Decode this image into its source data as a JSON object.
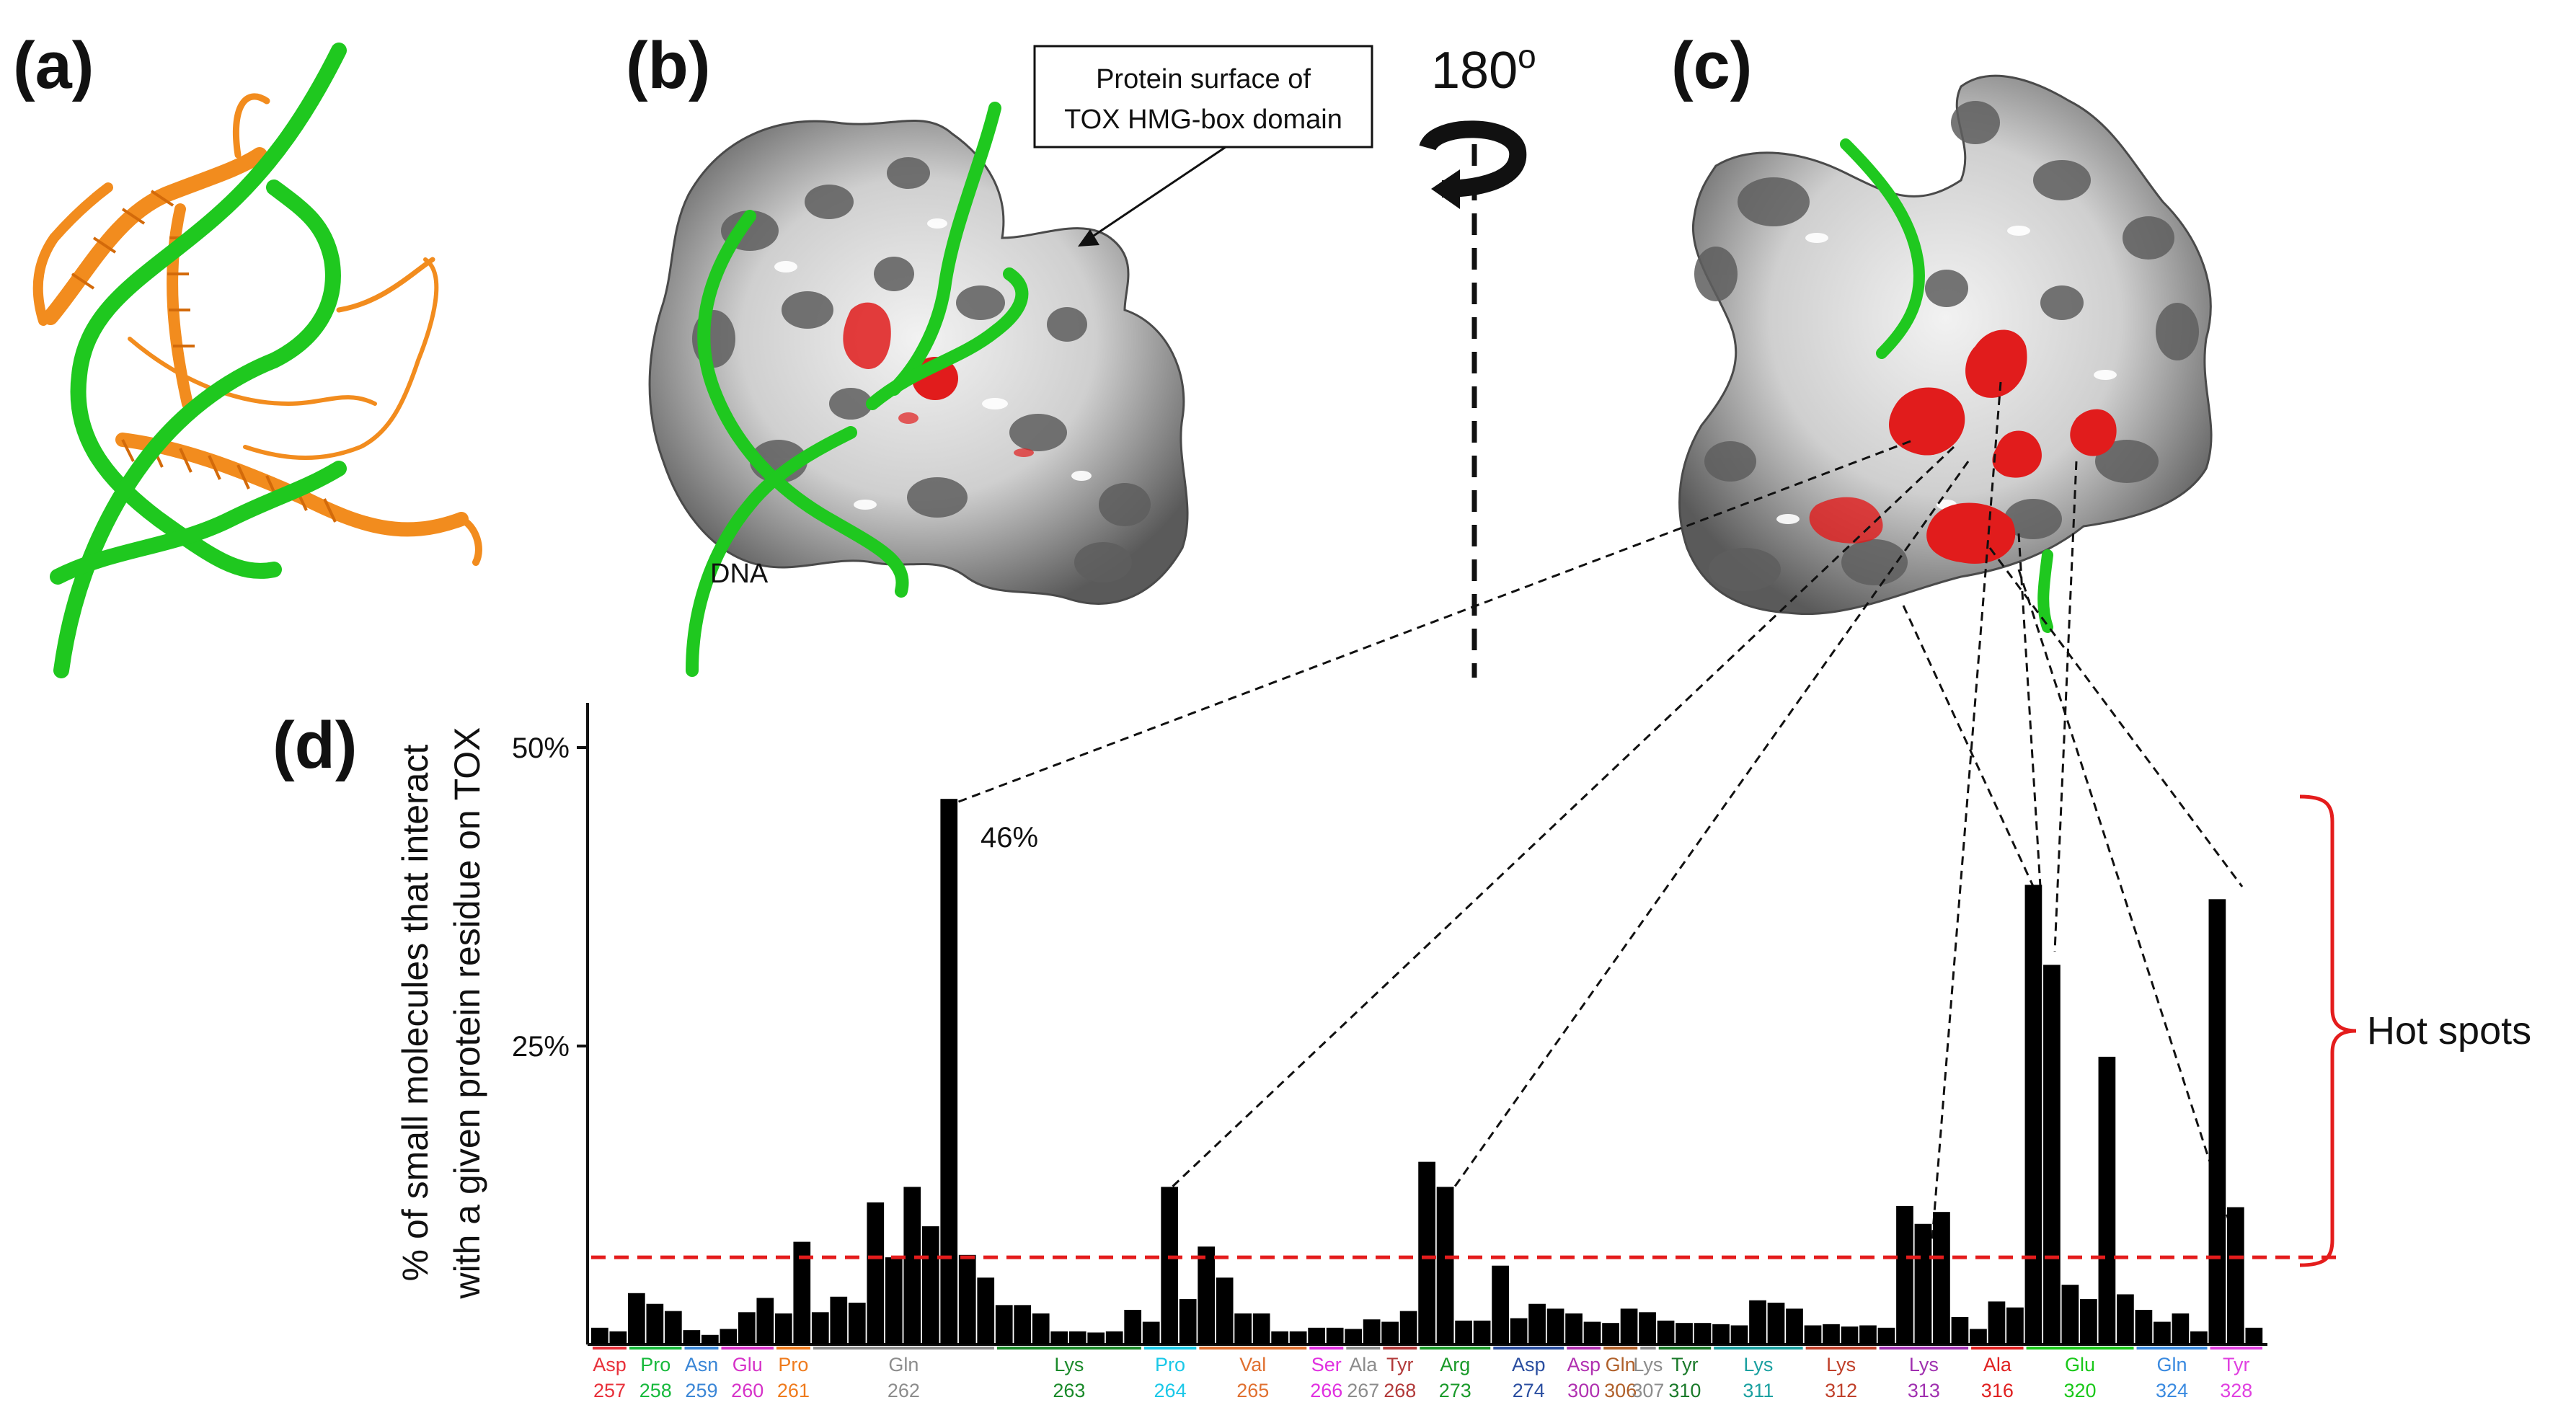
{
  "panels": {
    "a": "(a)",
    "b": "(b)",
    "c": "(c)",
    "d": "(d)"
  },
  "annotations": {
    "callout_line1": "Protein surface of",
    "callout_line2": "TOX HMG-box domain",
    "rotation": "180",
    "rotation_sup": "o",
    "dna": "DNA",
    "hot_spots": "Hot spots",
    "peak": "46%"
  },
  "colors": {
    "protein_ribbon": "#f28c1e",
    "dna_ribbon": "#1fc81f",
    "surface_light": "#d7d7d7",
    "surface_dark": "#5e5e5e",
    "contact_red": "#e11c1c",
    "threshold_red": "#e41c1c",
    "bars": "#000000"
  },
  "chart_data": {
    "type": "bar",
    "title": "",
    "xlabel": "",
    "ylabel_line1": "% of small molecules that interact",
    "ylabel_line2": "with a given protein residue on TOX",
    "ylim": [
      0,
      50
    ],
    "yticks": [
      "50%",
      "25%"
    ],
    "ytick_values": [
      50,
      25
    ],
    "threshold": 7.3,
    "values": [
      1.4,
      1.1,
      4.3,
      3.4,
      2.8,
      1.2,
      0.8,
      1.3,
      2.7,
      3.9,
      2.6,
      8.6,
      2.7,
      4.0,
      3.5,
      11.9,
      7.3,
      13.2,
      9.9,
      45.7,
      7.5,
      5.6,
      3.3,
      3.3,
      2.6,
      1.1,
      1.1,
      1.0,
      1.1,
      2.9,
      1.9,
      13.2,
      3.8,
      8.2,
      5.6,
      2.6,
      2.6,
      1.1,
      1.1,
      1.4,
      1.4,
      1.3,
      2.1,
      1.9,
      2.8,
      15.3,
      13.2,
      2.0,
      2.0,
      6.6,
      2.2,
      3.4,
      3.0,
      2.6,
      1.9,
      1.8,
      3.0,
      2.7,
      2.0,
      1.8,
      1.8,
      1.7,
      1.6,
      3.7,
      3.5,
      3.0,
      1.6,
      1.7,
      1.5,
      1.6,
      1.4,
      11.6,
      10.1,
      11.1,
      2.3,
      1.3,
      3.6,
      3.1,
      38.5,
      31.8,
      5.0,
      3.8,
      24.1,
      4.2,
      2.9,
      1.9,
      2.6,
      1.1,
      37.3,
      11.5,
      1.4
    ],
    "residues": [
      {
        "name": "Asp",
        "num": "257",
        "start": 0,
        "end": 1,
        "color": "#e8303a"
      },
      {
        "name": "Pro",
        "num": "258",
        "start": 2,
        "end": 4,
        "color": "#17b93c"
      },
      {
        "name": "Asn",
        "num": "259",
        "start": 5,
        "end": 6,
        "color": "#3a86d6"
      },
      {
        "name": "Glu",
        "num": "260",
        "start": 7,
        "end": 9,
        "color": "#d632c8"
      },
      {
        "name": "Pro",
        "num": "261",
        "start": 10,
        "end": 11,
        "color": "#ef7b1d"
      },
      {
        "name": "Gln",
        "num": "262",
        "start": 12,
        "end": 21,
        "color": "#8c8c8c"
      },
      {
        "name": "Lys",
        "num": "263",
        "start": 22,
        "end": 29,
        "color": "#1a8a2a"
      },
      {
        "name": "Pro",
        "num": "264",
        "start": 30,
        "end": 32,
        "color": "#1ac8e8"
      },
      {
        "name": "Val",
        "num": "265",
        "start": 33,
        "end": 38,
        "color": "#e07030"
      },
      {
        "name": "Ser",
        "num": "266",
        "start": 39,
        "end": 40,
        "color": "#e030e0"
      },
      {
        "name": "Ala",
        "num": "267",
        "start": 41,
        "end": 42,
        "color": "#8c8c8c"
      },
      {
        "name": "Tyr",
        "num": "268",
        "start": 43,
        "end": 44,
        "color": "#b23a3a"
      },
      {
        "name": "Arg",
        "num": "273",
        "start": 45,
        "end": 48,
        "color": "#1a9a2a"
      },
      {
        "name": "Asp",
        "num": "274",
        "start": 49,
        "end": 52,
        "color": "#2a4ea0"
      },
      {
        "name": "Asp",
        "num": "300",
        "start": 53,
        "end": 54,
        "color": "#b030b0"
      },
      {
        "name": "Gln",
        "num": "306",
        "start": 55,
        "end": 56,
        "color": "#b0602a"
      },
      {
        "name": "Lys",
        "num": "307",
        "start": 57,
        "end": 57,
        "color": "#8c8c8c"
      },
      {
        "name": "Tyr",
        "num": "310",
        "start": 58,
        "end": 60,
        "color": "#1a7a2a"
      },
      {
        "name": "Lys",
        "num": "311",
        "start": 61,
        "end": 65,
        "color": "#1aa0a0"
      },
      {
        "name": "Lys",
        "num": "312",
        "start": 66,
        "end": 69,
        "color": "#c0402a"
      },
      {
        "name": "Lys",
        "num": "313",
        "start": 70,
        "end": 74,
        "color": "#a030b0"
      },
      {
        "name": "Ala",
        "num": "316",
        "start": 75,
        "end": 77,
        "color": "#e02020"
      },
      {
        "name": "Glu",
        "num": "320",
        "start": 78,
        "end": 83,
        "color": "#1ac81a"
      },
      {
        "name": "Gln",
        "num": "324",
        "start": 84,
        "end": 87,
        "color": "#3a8ae0"
      },
      {
        "name": "Tyr",
        "num": "328",
        "start": 88,
        "end": 90,
        "color": "#e040e0"
      }
    ]
  }
}
